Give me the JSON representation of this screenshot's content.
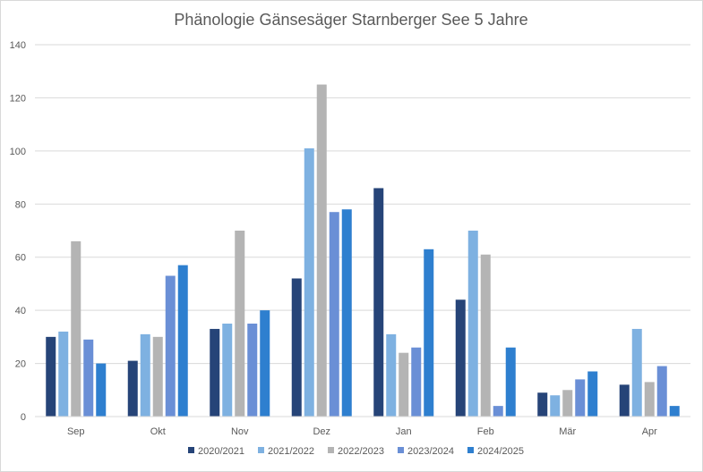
{
  "chart_data": {
    "type": "bar",
    "title": "Phänologie Gänsesäger Starnberger See  5 Jahre",
    "xlabel": "",
    "ylabel": "",
    "ylim": [
      0,
      140
    ],
    "yticks": [
      "0",
      "20",
      "40",
      "60",
      "80",
      "100",
      "120",
      "140"
    ],
    "grid": true,
    "legend_position": "bottom",
    "categories": [
      "Sep",
      "Okt",
      "Nov",
      "Dez",
      "Jan",
      "Feb",
      "Mär",
      "Apr"
    ],
    "series": [
      {
        "name": "2020/2021",
        "color": "#264478",
        "values": [
          30,
          21,
          33,
          52,
          86,
          44,
          9,
          12
        ]
      },
      {
        "name": "2021/2022",
        "color": "#7eb1e1",
        "values": [
          32,
          31,
          35,
          101,
          31,
          70,
          8,
          33
        ]
      },
      {
        "name": "2022/2023",
        "color": "#b4b4b4",
        "values": [
          66,
          30,
          70,
          125,
          24,
          61,
          10,
          13
        ]
      },
      {
        "name": "2023/2024",
        "color": "#6a8fd6",
        "values": [
          29,
          53,
          35,
          77,
          26,
          4,
          14,
          19
        ]
      },
      {
        "name": "2024/2025",
        "color": "#2e7fcf",
        "values": [
          20,
          57,
          40,
          78,
          63,
          26,
          17,
          4
        ]
      }
    ]
  }
}
